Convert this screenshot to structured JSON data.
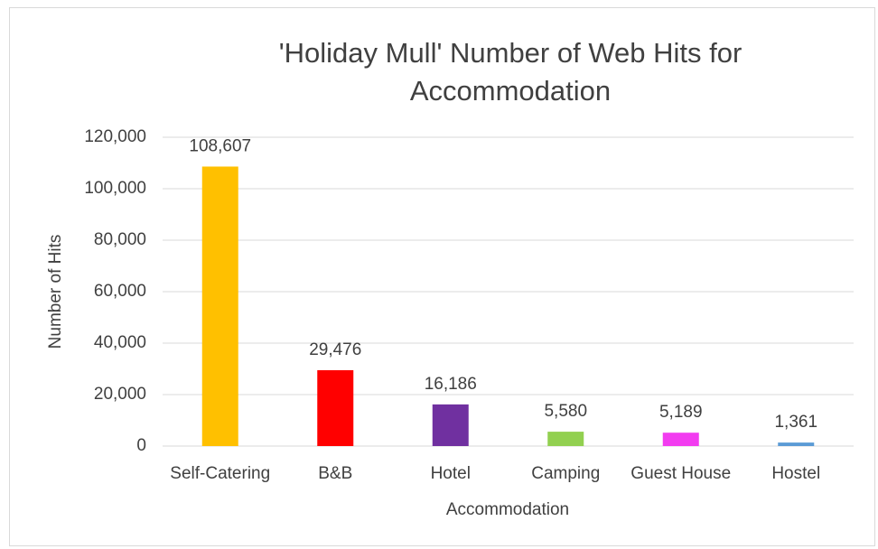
{
  "chart_data": {
    "type": "bar",
    "title": "'Holiday Mull' Number of Web Hits for Accommodation",
    "x_label": "Accommodation",
    "y_label": "Number of Hits",
    "categories": [
      "Self-Catering",
      "B&B",
      "Hotel",
      "Camping",
      "Guest House",
      "Hostel"
    ],
    "values": [
      108607,
      29476,
      16186,
      5580,
      5189,
      1361
    ],
    "value_labels": [
      "108,607",
      "29,476",
      "16,186",
      "5,580",
      "5,189",
      "1,361"
    ],
    "colors": [
      "#ffc000",
      "#ff0000",
      "#7030a0",
      "#92d050",
      "#f23cf0",
      "#5b9bd5"
    ],
    "ylim": [
      0,
      120000
    ],
    "yticks": [
      0,
      {
        "value": 20000,
        "label": "20,000"
      },
      {
        "value": 40000,
        "label": "40,000"
      },
      {
        "value": 60000,
        "label": "60,000"
      },
      {
        "value": 80000,
        "label": "80,000"
      },
      {
        "value": 100000,
        "label": "100,000"
      },
      {
        "value": 120000,
        "label": "120,000"
      }
    ],
    "grid": true
  }
}
